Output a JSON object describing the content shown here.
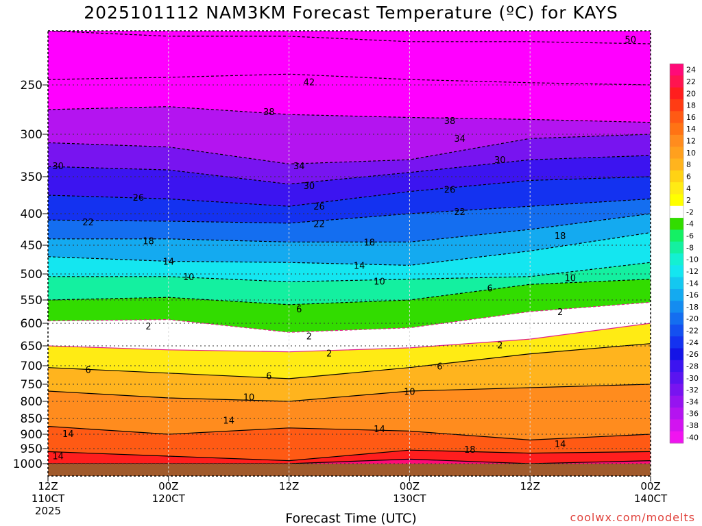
{
  "title": "2025101112 NAM3KM Forecast Temperature (ºC) for KAYS",
  "x_axis_label": "Forecast Time (UTC)",
  "credit": "coolwx.com/modelts",
  "chart_data": {
    "type": "heatmap",
    "title": "2025101112 NAM3KM Forecast Temperature (ºC) for KAYS",
    "xlabel": "Forecast Time (UTC)",
    "ylabel": "",
    "x_ticks": [
      {
        "hour": 0,
        "lines": [
          "12Z",
          "110CT",
          "2025"
        ]
      },
      {
        "hour": 12,
        "lines": [
          "00Z",
          "120CT"
        ]
      },
      {
        "hour": 24,
        "lines": [
          "12Z"
        ]
      },
      {
        "hour": 36,
        "lines": [
          "00Z",
          "130CT"
        ]
      },
      {
        "hour": 48,
        "lines": [
          "12Z"
        ]
      },
      {
        "hour": 60,
        "lines": [
          "00Z",
          "140CT"
        ]
      }
    ],
    "x_range_hours": [
      0,
      60
    ],
    "y_ticks": [
      250,
      300,
      350,
      400,
      450,
      500,
      550,
      600,
      650,
      700,
      750,
      800,
      850,
      900,
      950,
      1000
    ],
    "y_range_hpa": [
      200,
      1000
    ],
    "colorbar": {
      "ticks": [
        24,
        22,
        20,
        18,
        16,
        14,
        12,
        10,
        8,
        6,
        4,
        2,
        -2,
        -4,
        -6,
        -8,
        -10,
        -12,
        -14,
        -16,
        -18,
        -20,
        -22,
        -24,
        -26,
        -28,
        -30,
        -32,
        -34,
        -36,
        -38,
        -40
      ],
      "colors": [
        "#ff0a78",
        "#ff1450",
        "#ff1e1e",
        "#ff3c14",
        "#ff5a14",
        "#ff7314",
        "#ff8c1e",
        "#ffa01e",
        "#ffb41e",
        "#ffd214",
        "#ffeb14",
        "#ffff00",
        "#ffffff",
        "#32dc00",
        "#14f064",
        "#14f0a0",
        "#14f0d2",
        "#14e6f0",
        "#14c8f0",
        "#14aaf0",
        "#148cf0",
        "#146ef0",
        "#1450f0",
        "#1432f0",
        "#1414e6",
        "#3c14f0",
        "#5a14f0",
        "#7814f0",
        "#9614f0",
        "#b414f0",
        "#d214f0",
        "#f014f0"
      ]
    },
    "contour_labels": [
      {
        "value": "50",
        "hour": 58,
        "hpa": 208
      },
      {
        "value": "42",
        "hour": 26,
        "hpa": 247
      },
      {
        "value": "38",
        "hour": 22,
        "hpa": 277
      },
      {
        "value": "38",
        "hour": 40,
        "hpa": 286
      },
      {
        "value": "34",
        "hour": 41,
        "hpa": 305
      },
      {
        "value": "34",
        "hour": 25,
        "hpa": 337
      },
      {
        "value": "30",
        "hour": 1,
        "hpa": 337
      },
      {
        "value": "30",
        "hour": 45,
        "hpa": 330
      },
      {
        "value": "30",
        "hour": 26,
        "hpa": 362
      },
      {
        "value": "26",
        "hour": 9,
        "hpa": 378
      },
      {
        "value": "26",
        "hour": 27,
        "hpa": 390
      },
      {
        "value": "26",
        "hour": 40,
        "hpa": 367
      },
      {
        "value": "22",
        "hour": 4,
        "hpa": 413
      },
      {
        "value": "22",
        "hour": 27,
        "hpa": 416
      },
      {
        "value": "22",
        "hour": 41,
        "hpa": 397
      },
      {
        "value": "18",
        "hour": 10,
        "hpa": 443
      },
      {
        "value": "18",
        "hour": 32,
        "hpa": 445
      },
      {
        "value": "18",
        "hour": 51,
        "hpa": 435
      },
      {
        "value": "14",
        "hour": 12,
        "hpa": 478
      },
      {
        "value": "14",
        "hour": 31,
        "hpa": 485
      },
      {
        "value": "10",
        "hour": 14,
        "hpa": 505
      },
      {
        "value": "10",
        "hour": 33,
        "hpa": 514
      },
      {
        "value": "10",
        "hour": 52,
        "hpa": 507
      },
      {
        "value": "6",
        "hour": 44,
        "hpa": 527
      },
      {
        "value": "6",
        "hour": 25,
        "hpa": 569
      },
      {
        "value": "2",
        "hour": 10,
        "hpa": 606
      },
      {
        "value": "2",
        "hour": 26,
        "hpa": 628
      },
      {
        "value": "2",
        "hour": 51,
        "hpa": 575
      },
      {
        "value": "2",
        "hour": 28,
        "hpa": 668
      },
      {
        "value": "2",
        "hour": 45,
        "hpa": 648
      },
      {
        "value": "6",
        "hour": 4,
        "hpa": 710
      },
      {
        "value": "6",
        "hour": 22,
        "hpa": 727
      },
      {
        "value": "6",
        "hour": 39,
        "hpa": 701
      },
      {
        "value": "10",
        "hour": 20,
        "hpa": 787
      },
      {
        "value": "10",
        "hour": 36,
        "hpa": 771
      },
      {
        "value": "14",
        "hour": 18,
        "hpa": 855
      },
      {
        "value": "14",
        "hour": 2,
        "hpa": 898
      },
      {
        "value": "14",
        "hour": 33,
        "hpa": 883
      },
      {
        "value": "14",
        "hour": 1,
        "hpa": 974
      },
      {
        "value": "14",
        "hour": 51,
        "hpa": 933
      },
      {
        "value": "18",
        "hour": 42,
        "hpa": 952
      }
    ]
  }
}
